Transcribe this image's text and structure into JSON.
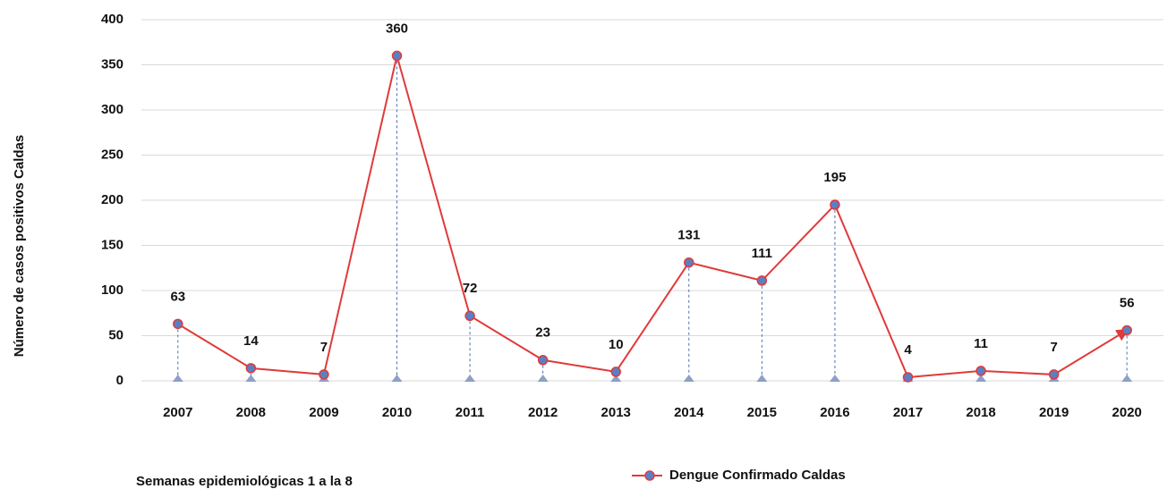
{
  "chart_data": {
    "type": "line",
    "y_label": "Número de casos positivos Caldas",
    "annotation": "Semanas epidemiológicas 1 a la 8",
    "categories": [
      "2007",
      "2008",
      "2009",
      "2010",
      "2011",
      "2012",
      "2013",
      "2014",
      "2015",
      "2016",
      "2017",
      "2018",
      "2019",
      "2020"
    ],
    "series": [
      {
        "name": "Dengue Confirmado Caldas",
        "color": "#e03a3a",
        "values": [
          63,
          14,
          7,
          360,
          72,
          23,
          10,
          131,
          111,
          195,
          4,
          11,
          7,
          56
        ]
      }
    ],
    "ylim": [
      0,
      400
    ],
    "yticks": [
      0,
      50,
      100,
      150,
      200,
      250,
      300,
      350,
      400
    ],
    "grid": true
  }
}
